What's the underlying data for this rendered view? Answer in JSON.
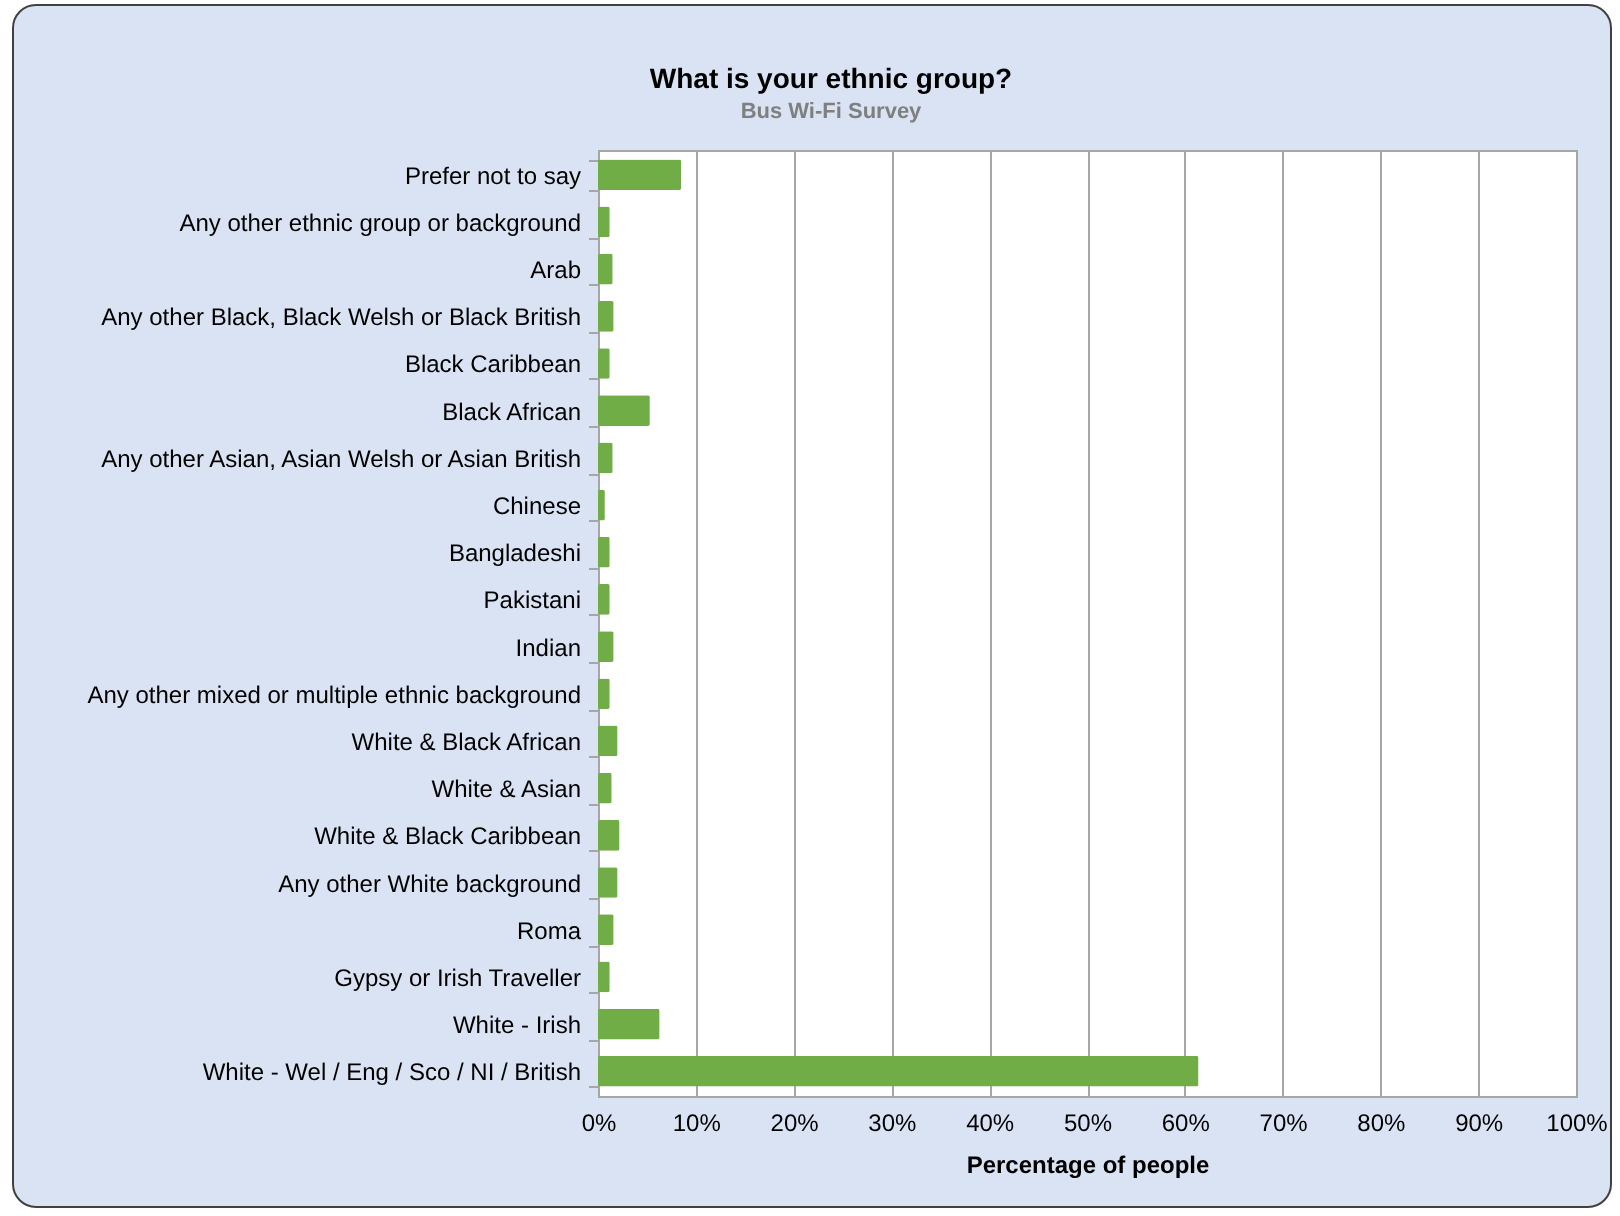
{
  "chart_data": {
    "type": "bar",
    "orientation": "horizontal",
    "title": "What is your ethnic group?",
    "subtitle": "Bus Wi-Fi Survey",
    "xlabel": "Percentage of people",
    "categories": [
      "Prefer not to say",
      "Any other ethnic group or background",
      "Arab",
      "Any other Black, Black Welsh or Black British",
      "Black Caribbean",
      "Black African",
      "Any other Asian, Asian Welsh or Asian British",
      "Chinese",
      "Bangladeshi",
      "Pakistani",
      "Indian",
      "Any other mixed or multiple ethnic background",
      "White & Black African",
      "White & Asian",
      "White & Black Caribbean",
      "Any other White background",
      "Roma",
      "Gypsy or Irish Traveller",
      "White - Irish",
      "White - Wel / Eng / Sco / NI / British"
    ],
    "values": [
      8.5,
      1.2,
      1.5,
      1.6,
      1.2,
      5.3,
      1.5,
      0.7,
      1.2,
      1.2,
      1.6,
      1.2,
      2.0,
      1.4,
      2.2,
      2.0,
      1.6,
      1.2,
      6.3,
      61.4
    ],
    "color": "#70ad47",
    "xlim": [
      0,
      100
    ],
    "xticks": [
      {
        "value": 0,
        "label": "0%"
      },
      {
        "value": 10,
        "label": "10%"
      },
      {
        "value": 20,
        "label": "20%"
      },
      {
        "value": 30,
        "label": "30%"
      },
      {
        "value": 40,
        "label": "40%"
      },
      {
        "value": 50,
        "label": "50%"
      },
      {
        "value": 60,
        "label": "60%"
      },
      {
        "value": 70,
        "label": "70%"
      },
      {
        "value": 80,
        "label": "80%"
      },
      {
        "value": 90,
        "label": "90%"
      },
      {
        "value": 100,
        "label": "100%"
      }
    ],
    "grid": "x"
  }
}
